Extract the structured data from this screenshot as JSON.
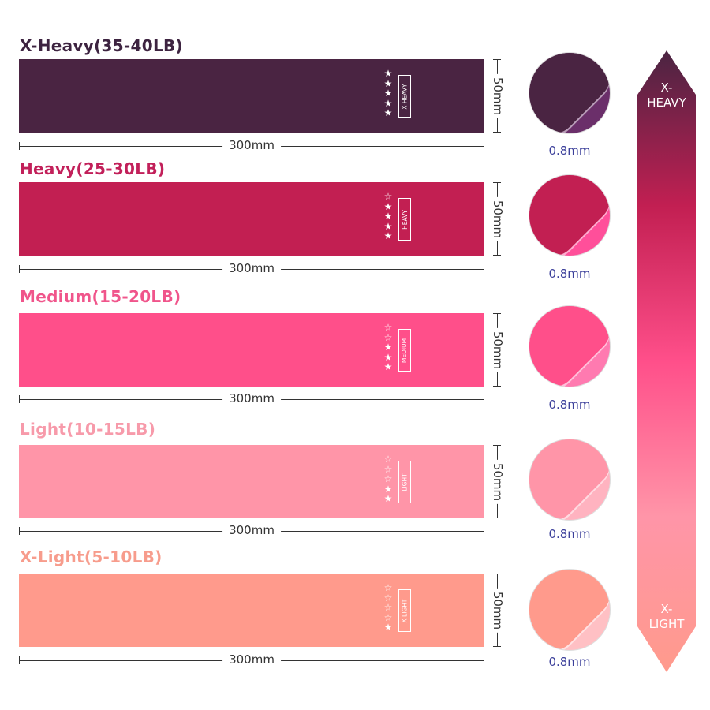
{
  "bands": [
    {
      "title": "X-Heavy(35-40LB)",
      "tag": "X-HEAVY",
      "stars_filled": 5,
      "stars_total": 5,
      "width_label": "300mm",
      "height_label": "50mm",
      "thickness": "0.8mm",
      "color": "#4a2442",
      "title_color": "#3d2340",
      "light": "#6b2f6a"
    },
    {
      "title": "Heavy(25-30LB)",
      "tag": "HEAVY",
      "stars_filled": 4,
      "stars_total": 5,
      "width_label": "300mm",
      "height_label": "50mm",
      "thickness": "0.8mm",
      "color": "#c21f52",
      "title_color": "#c2205a",
      "light": "#ff4f9a"
    },
    {
      "title": "Medium(15-20LB)",
      "tag": "MEDIUM",
      "stars_filled": 3,
      "stars_total": 5,
      "width_label": "300mm",
      "height_label": "50mm",
      "thickness": "0.8mm",
      "color": "#ff4f8a",
      "title_color": "#f0558b",
      "light": "#ff7ab0"
    },
    {
      "title": "Light(10-15LB)",
      "tag": "LIGHT",
      "stars_filled": 2,
      "stars_total": 5,
      "width_label": "300mm",
      "height_label": "50mm",
      "thickness": "0.8mm",
      "color": "#ff95a8",
      "title_color": "#f79aaa",
      "light": "#ffb3c0"
    },
    {
      "title": "X-Light(5-10LB)",
      "tag": "X-LIGHT",
      "stars_filled": 1,
      "stars_total": 5,
      "width_label": "300mm",
      "height_label": "50mm",
      "thickness": "0.8mm",
      "color": "#ff9a8c",
      "title_color": "#f79c8c",
      "light": "#ffc0c4"
    }
  ],
  "scale": {
    "top_label": "X-HEAVY",
    "top_lines": [
      "X-",
      "HEAVY"
    ],
    "bottom_label": "X-LIGHT",
    "bottom_lines": [
      "X-",
      "LIGHT"
    ],
    "gradient": [
      "#4a2442",
      "#c21f52",
      "#ff4f8a",
      "#ff95a8",
      "#ff9a8c"
    ]
  }
}
